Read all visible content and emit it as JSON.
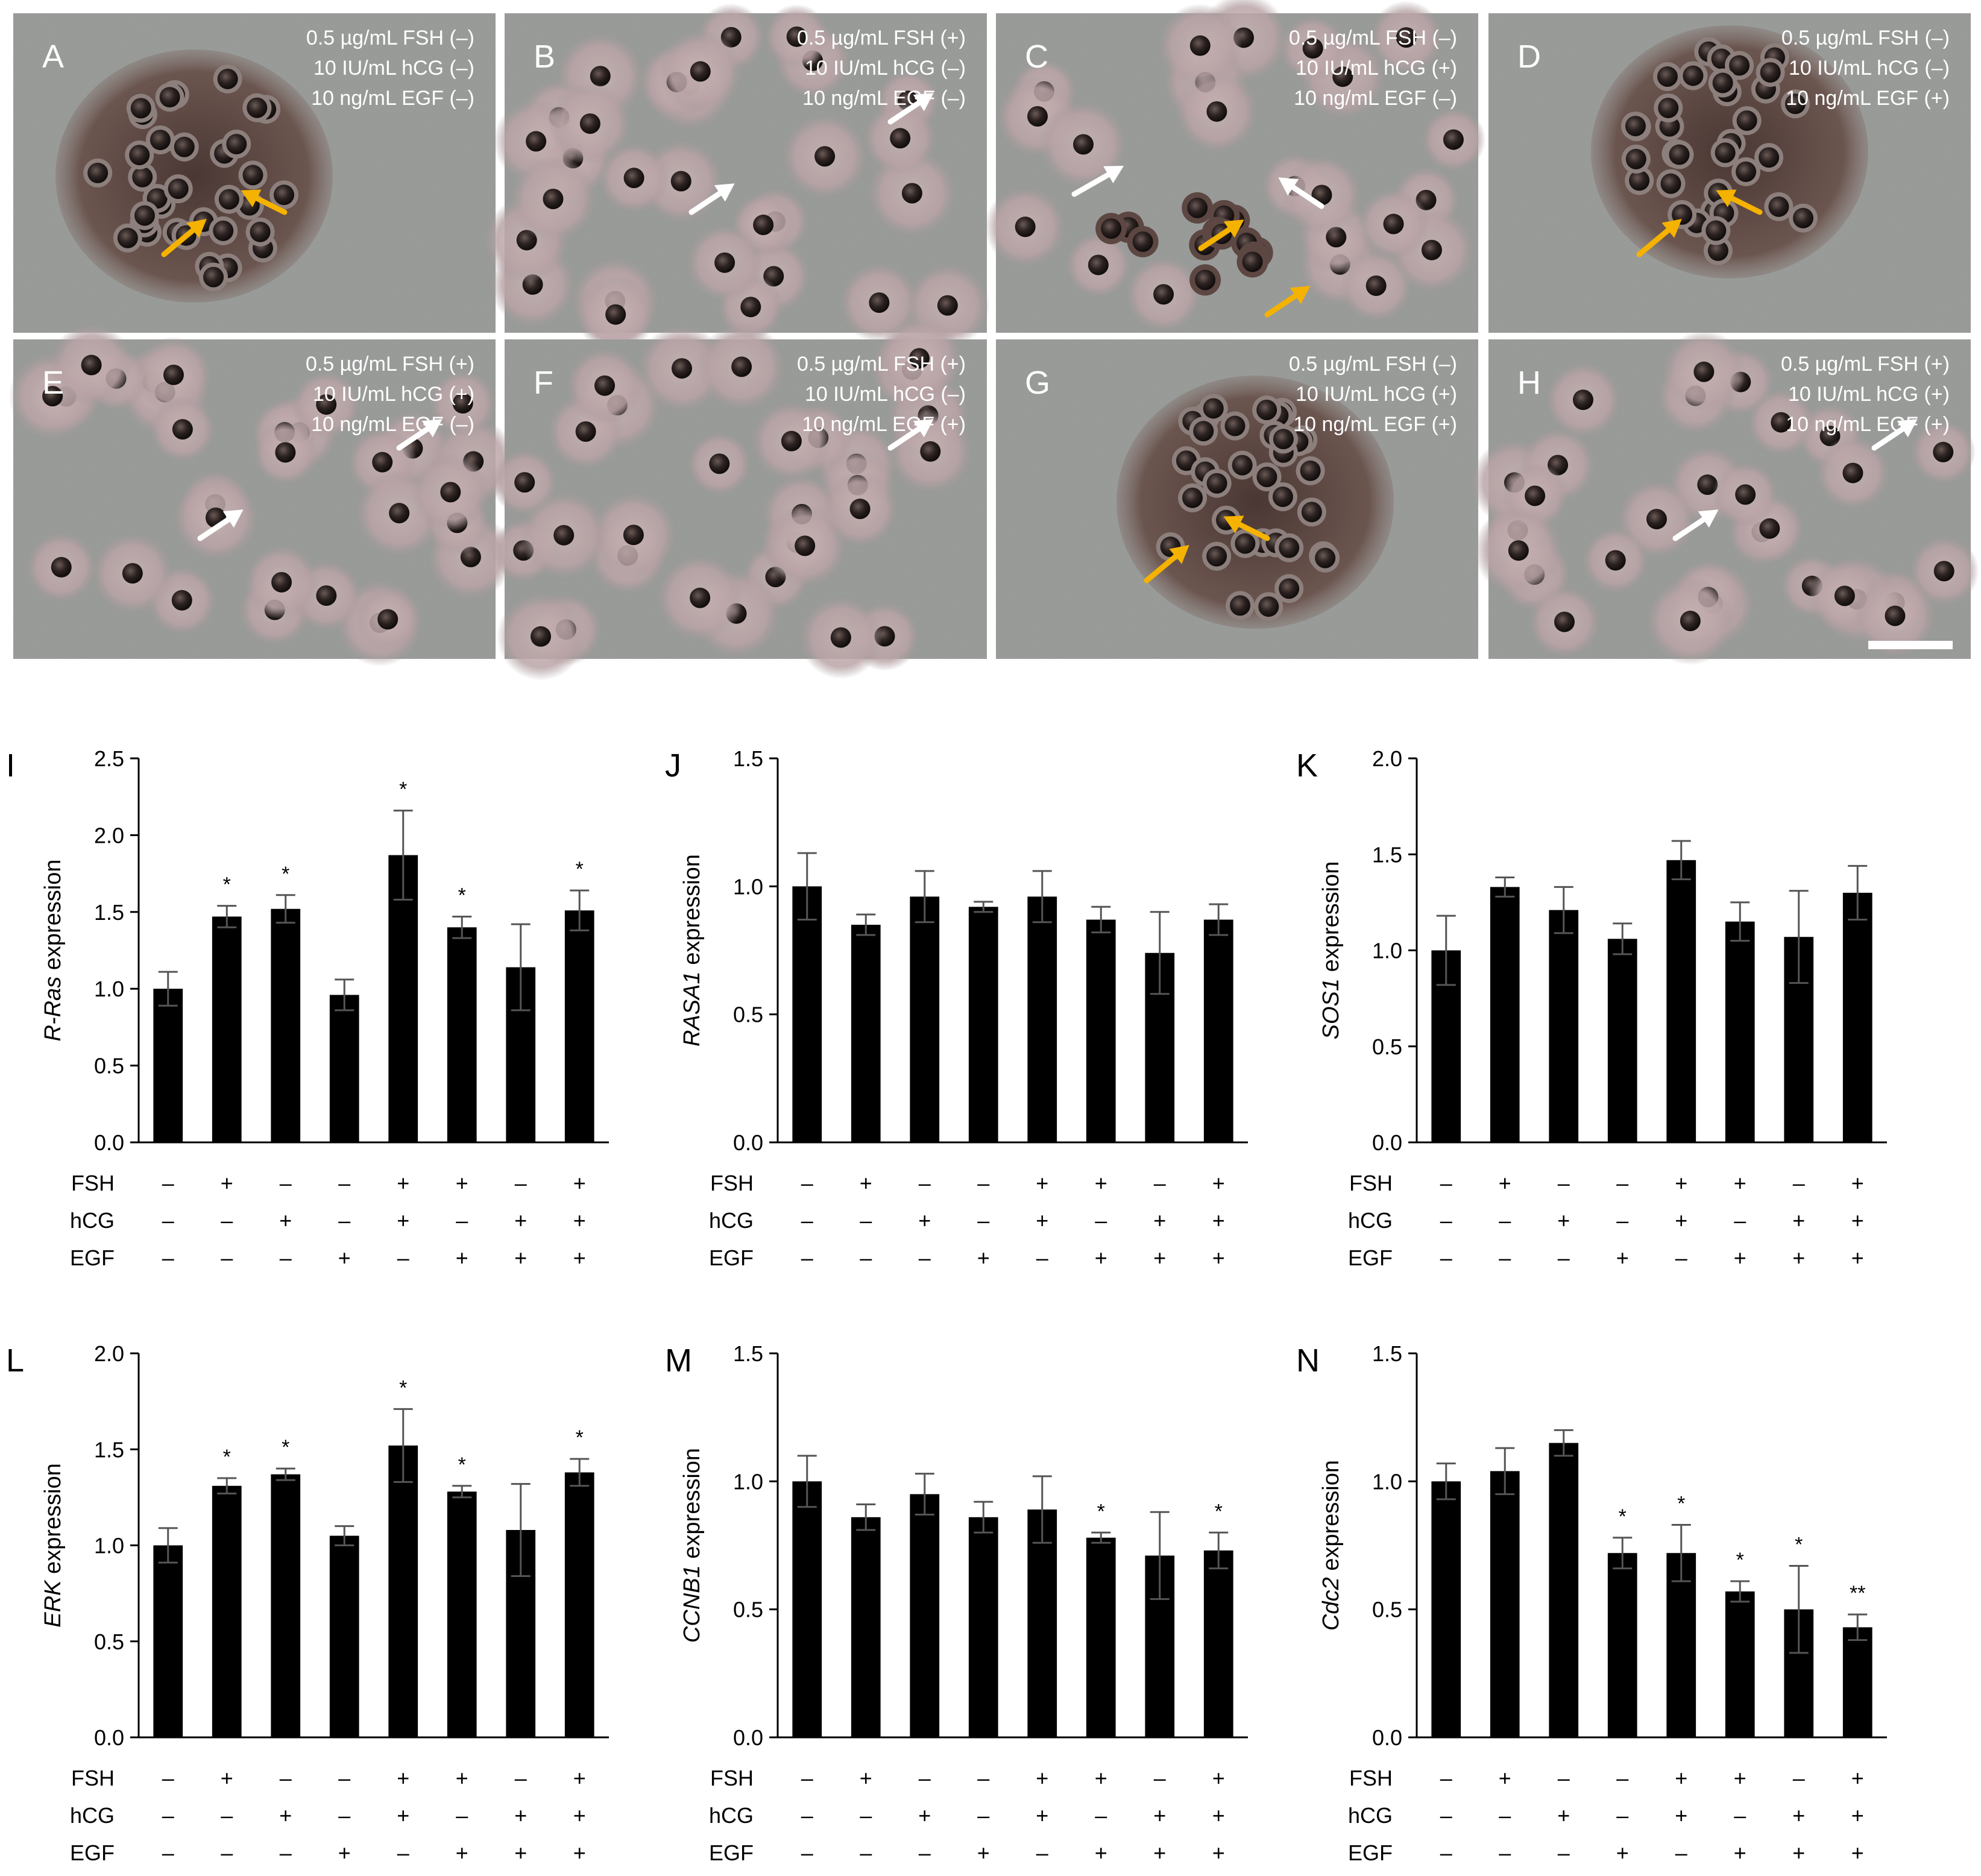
{
  "micrographs": [
    {
      "letter": "A",
      "fsh": "0.5 µg/mL FSH (–)",
      "hcg": "10 IU/mL hCG (–)",
      "egf": "10 ng/mL EGF (–)",
      "pattern": "clump",
      "arrows": [
        "orange",
        "orange"
      ]
    },
    {
      "letter": "B",
      "fsh": "0.5 µg/mL FSH (+)",
      "hcg": "10 IU/mL hCG (–)",
      "egf": "10 ng/mL EGF (–)",
      "pattern": "expanded",
      "arrows": [
        "white",
        "white"
      ]
    },
    {
      "letter": "C",
      "fsh": "0.5 µg/mL FSH (–)",
      "hcg": "10 IU/mL hCG (+)",
      "egf": "10 ng/mL EGF (–)",
      "pattern": "mixed",
      "arrows": [
        "white",
        "white",
        "orange",
        "orange"
      ]
    },
    {
      "letter": "D",
      "fsh": "0.5 µg/mL FSH (–)",
      "hcg": "10 IU/mL hCG (–)",
      "egf": "10 ng/mL EGF (+)",
      "pattern": "clump",
      "arrows": [
        "orange",
        "orange"
      ]
    },
    {
      "letter": "E",
      "fsh": "0.5 µg/mL FSH (+)",
      "hcg": "10 IU/mL hCG (+)",
      "egf": "10 ng/mL EGF (–)",
      "pattern": "expanded",
      "arrows": [
        "white",
        "white"
      ]
    },
    {
      "letter": "F",
      "fsh": "0.5 µg/mL FSH (+)",
      "hcg": "10 IU/mL hCG (–)",
      "egf": "10 ng/mL EGF (+)",
      "pattern": "expanded",
      "arrows": [
        "white"
      ]
    },
    {
      "letter": "G",
      "fsh": "0.5 µg/mL FSH (–)",
      "hcg": "10 IU/mL hCG (+)",
      "egf": "10 ng/mL EGF (+)",
      "pattern": "clump",
      "arrows": [
        "orange",
        "orange"
      ]
    },
    {
      "letter": "H",
      "fsh": "0.5 µg/mL FSH (+)",
      "hcg": "10 IU/mL hCG (+)",
      "egf": "10 ng/mL EGF (+)",
      "pattern": "expanded",
      "arrows": [
        "white",
        "white"
      ]
    }
  ],
  "treatment_rows": {
    "labels": [
      "FSH",
      "hCG",
      "EGF"
    ],
    "FSH": [
      "–",
      "+",
      "–",
      "–",
      "+",
      "+",
      "–",
      "+"
    ],
    "hCG": [
      "–",
      "–",
      "+",
      "–",
      "+",
      "–",
      "+",
      "+"
    ],
    "EGF": [
      "–",
      "–",
      "–",
      "+",
      "–",
      "+",
      "+",
      "+"
    ]
  },
  "colors": {
    "bar": "#000000",
    "arrow_orange": "#f5b200",
    "arrow_white": "#ffffff",
    "micrograph_bg": "#8f928f"
  },
  "chart_data": [
    {
      "panel": "I",
      "type": "bar",
      "ylabel": "R-Ras expression",
      "ylim": [
        0,
        2.5
      ],
      "yticks": [
        "0.0",
        "0.5",
        "1.0",
        "1.5",
        "2.0",
        "2.5"
      ],
      "values": [
        1.0,
        1.47,
        1.52,
        0.96,
        1.87,
        1.4,
        1.14,
        1.51
      ],
      "errors": [
        0.11,
        0.07,
        0.09,
        0.1,
        0.29,
        0.07,
        0.28,
        0.13
      ],
      "sig": [
        "",
        "*",
        "*",
        "",
        "*",
        "*",
        "",
        "*"
      ]
    },
    {
      "panel": "J",
      "type": "bar",
      "ylabel": "RASA1 expression",
      "ylim": [
        0,
        1.5
      ],
      "yticks": [
        "0.0",
        "0.5",
        "1.0",
        "1.5"
      ],
      "values": [
        1.0,
        0.85,
        0.96,
        0.92,
        0.96,
        0.87,
        0.74,
        0.87
      ],
      "errors": [
        0.13,
        0.04,
        0.1,
        0.02,
        0.1,
        0.05,
        0.16,
        0.06
      ],
      "sig": [
        "",
        "",
        "",
        "",
        "",
        "",
        "",
        ""
      ]
    },
    {
      "panel": "K",
      "type": "bar",
      "ylabel": "SOS1 expression",
      "ylim": [
        0,
        2.0
      ],
      "yticks": [
        "0.0",
        "0.5",
        "1.0",
        "1.5",
        "2.0"
      ],
      "values": [
        1.0,
        1.33,
        1.21,
        1.06,
        1.47,
        1.15,
        1.07,
        1.3
      ],
      "errors": [
        0.18,
        0.05,
        0.12,
        0.08,
        0.1,
        0.1,
        0.24,
        0.14
      ],
      "sig": [
        "",
        "",
        "",
        "",
        "",
        "",
        "",
        ""
      ]
    },
    {
      "panel": "L",
      "type": "bar",
      "ylabel": "ERK expression",
      "ylim": [
        0,
        2.0
      ],
      "yticks": [
        "0.0",
        "0.5",
        "1.0",
        "1.5",
        "2.0"
      ],
      "values": [
        1.0,
        1.31,
        1.37,
        1.05,
        1.52,
        1.28,
        1.08,
        1.38
      ],
      "errors": [
        0.09,
        0.04,
        0.03,
        0.05,
        0.19,
        0.03,
        0.24,
        0.07
      ],
      "sig": [
        "",
        "*",
        "*",
        "",
        "*",
        "*",
        "",
        "*"
      ]
    },
    {
      "panel": "M",
      "type": "bar",
      "ylabel": "CCNB1 expression",
      "ylim": [
        0,
        1.5
      ],
      "yticks": [
        "0.0",
        "0.5",
        "1.0",
        "1.5"
      ],
      "values": [
        1.0,
        0.86,
        0.95,
        0.86,
        0.89,
        0.78,
        0.71,
        0.73
      ],
      "errors": [
        0.1,
        0.05,
        0.08,
        0.06,
        0.13,
        0.02,
        0.17,
        0.07
      ],
      "sig": [
        "",
        "",
        "",
        "",
        "",
        "*",
        "",
        "*"
      ]
    },
    {
      "panel": "N",
      "type": "bar",
      "ylabel": "Cdc2 expression",
      "ylim": [
        0,
        1.5
      ],
      "yticks": [
        "0.0",
        "0.5",
        "1.0",
        "1.5"
      ],
      "values": [
        1.0,
        1.04,
        1.15,
        0.72,
        0.72,
        0.57,
        0.5,
        0.43
      ],
      "errors": [
        0.07,
        0.09,
        0.05,
        0.06,
        0.11,
        0.04,
        0.17,
        0.05
      ],
      "sig": [
        "",
        "",
        "",
        "*",
        "*",
        "*",
        "*",
        "**"
      ]
    }
  ]
}
